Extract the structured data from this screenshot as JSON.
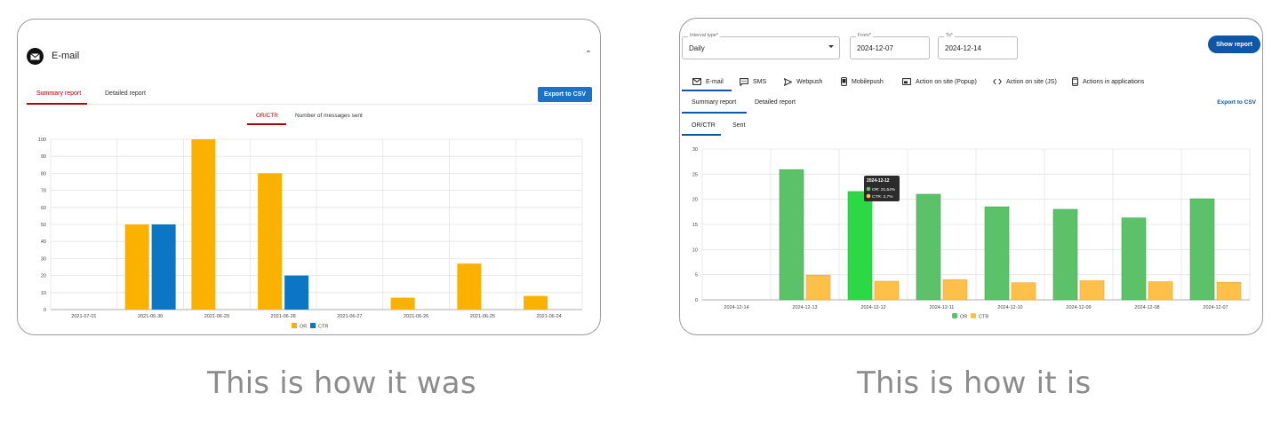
{
  "captions": {
    "old": "This is how it was",
    "new": "This is how it is"
  },
  "old": {
    "title": "E-mail",
    "tabs": [
      "Summary report",
      "Detailed report"
    ],
    "export_label": "Export to CSV",
    "subtabs": [
      "OR/CTR",
      "Number of messages sent"
    ],
    "colors": {
      "or": "#fbb100",
      "ctr": "#0b77c4",
      "accent": "#b50000"
    }
  },
  "new": {
    "interval": {
      "label": "Interval type*",
      "value": "Daily"
    },
    "from": {
      "label": "From*",
      "value": "2024-12-07"
    },
    "to": {
      "label": "To*",
      "value": "2024-12-14"
    },
    "show_label": "Show report",
    "tabs": [
      {
        "label": "E-mail",
        "icon": "email-icon"
      },
      {
        "label": "SMS",
        "icon": "sms-icon"
      },
      {
        "label": "Webpush",
        "icon": "send-icon"
      },
      {
        "label": "Mobilepush",
        "icon": "phone-icon"
      },
      {
        "label": "Action on site (Popup)",
        "icon": "popup-icon"
      },
      {
        "label": "Action on site (JS)",
        "icon": "code-icon"
      },
      {
        "label": "Actions in applications",
        "icon": "app-icon"
      }
    ],
    "report_tabs": [
      "Summary report",
      "Detailed report"
    ],
    "export_label": "Export to CSV",
    "subtabs": [
      "OR/CTR",
      "Sent"
    ],
    "tooltip": {
      "title": "2024-12-12",
      "or": "OR: 21,54%",
      "ctr": "CTR: 3,7%"
    },
    "colors": {
      "or": "#5cc26a",
      "or_highlight": "#2dd845",
      "ctr": "#ffc04a",
      "accent": "#0f56a8"
    }
  },
  "chart_data": [
    {
      "type": "bar",
      "categories": [
        "2021-07-01",
        "2021-06-30",
        "2021-06-29",
        "2021-06-28",
        "2021-06-27",
        "2021-06-26",
        "2021-06-25",
        "2021-06-24"
      ],
      "series": [
        {
          "name": "OR",
          "values": [
            0,
            50,
            100,
            80,
            0,
            7,
            27,
            8
          ]
        },
        {
          "name": "CTR",
          "values": [
            0,
            50,
            0,
            20,
            0,
            0,
            0,
            0
          ]
        }
      ],
      "ylim": [
        0,
        100
      ],
      "yticks": [
        0,
        10,
        20,
        30,
        40,
        50,
        60,
        70,
        80,
        90,
        100
      ],
      "grid": true,
      "legend": "bottom"
    },
    {
      "type": "bar",
      "categories": [
        "2024-12-14",
        "2024-12-13",
        "2024-12-12",
        "2024-12-11",
        "2024-12-10",
        "2024-12-09",
        "2024-12-08",
        "2024-12-07"
      ],
      "series": [
        {
          "name": "OR",
          "values": [
            0,
            25.9,
            21.54,
            21,
            18.5,
            18,
            16.3,
            20.1
          ]
        },
        {
          "name": "CTR",
          "values": [
            0,
            4.9,
            3.7,
            4,
            3.4,
            3.8,
            3.6,
            3.5
          ]
        }
      ],
      "ylim": [
        0,
        30
      ],
      "yticks": [
        0,
        5,
        10,
        15,
        20,
        25,
        30
      ],
      "grid": true,
      "legend": "bottom"
    }
  ]
}
